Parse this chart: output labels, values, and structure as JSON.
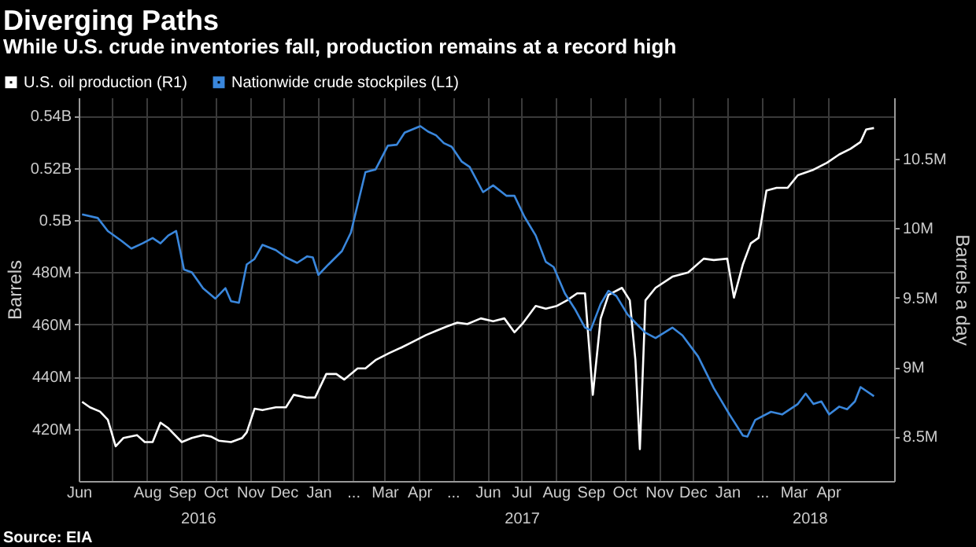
{
  "chart_data": {
    "type": "line",
    "title": "Diverging Paths",
    "subtitle": "While U.S. crude inventories fall, production remains at a record high",
    "ylabel": "Barrels",
    "y2label": "Barrels a day",
    "xlim": [
      "2016-06-01",
      "2018-05-30"
    ],
    "xticks": [
      {
        "value": "2016-06-01",
        "label": "Jun"
      },
      {
        "value": "2016-07-01",
        "label": null
      },
      {
        "value": "2016-08-01",
        "label": "Aug"
      },
      {
        "value": "2016-09-01",
        "label": "Sep"
      },
      {
        "value": "2016-10-01",
        "label": "Oct"
      },
      {
        "value": "2016-11-01",
        "label": "Nov"
      },
      {
        "value": "2016-12-01",
        "label": "Dec"
      },
      {
        "value": "2017-01-01",
        "label": "Jan"
      },
      {
        "value": "2017-02-01",
        "label": "..."
      },
      {
        "value": "2017-03-01",
        "label": "Mar"
      },
      {
        "value": "2017-04-01",
        "label": "Apr"
      },
      {
        "value": "2017-05-01",
        "label": "..."
      },
      {
        "value": "2017-06-01",
        "label": "Jun"
      },
      {
        "value": "2017-07-01",
        "label": "Jul"
      },
      {
        "value": "2017-08-01",
        "label": "Aug"
      },
      {
        "value": "2017-09-01",
        "label": "Sep"
      },
      {
        "value": "2017-10-01",
        "label": "Oct"
      },
      {
        "value": "2017-11-01",
        "label": "Nov"
      },
      {
        "value": "2017-12-01",
        "label": "Dec"
      },
      {
        "value": "2018-01-01",
        "label": "Jan"
      },
      {
        "value": "2018-02-01",
        "label": "..."
      },
      {
        "value": "2018-03-01",
        "label": "Mar"
      },
      {
        "value": "2018-04-01",
        "label": "Apr"
      }
    ],
    "ylim": [
      400000000,
      547000000
    ],
    "yticks": [
      {
        "value": 420000000,
        "label": "420M"
      },
      {
        "value": 440000000,
        "label": "440M"
      },
      {
        "value": 460000000,
        "label": "460M"
      },
      {
        "value": 480000000,
        "label": "480M"
      },
      {
        "value": 500000000,
        "label": "0.5B"
      },
      {
        "value": 520000000,
        "label": "0.52B"
      },
      {
        "value": 540000000,
        "label": "0.54B"
      }
    ],
    "y2lim": [
      8180000,
      10940000
    ],
    "y2ticks": [
      {
        "value": 8500000,
        "label": "8.5M"
      },
      {
        "value": 9000000,
        "label": "9M"
      },
      {
        "value": 9500000,
        "label": "9.5M"
      },
      {
        "value": 10000000,
        "label": "10M"
      },
      {
        "value": 10500000,
        "label": "10.5M"
      }
    ],
    "grid": true,
    "legend": "top left",
    "series": [
      {
        "name": "U.S. oil production  (R1)",
        "color": "#ffffff",
        "axis": "y2",
        "x": [
          "2016-06-04",
          "2016-06-11",
          "2016-06-20",
          "2016-06-27",
          "2016-07-04",
          "2016-07-11",
          "2016-07-23",
          "2016-07-30",
          "2016-08-06",
          "2016-08-13",
          "2016-08-20",
          "2016-09-01",
          "2016-09-10",
          "2016-09-20",
          "2016-09-27",
          "2016-10-04",
          "2016-10-15",
          "2016-10-25",
          "2016-10-29",
          "2016-11-05",
          "2016-11-12",
          "2016-11-24",
          "2016-12-03",
          "2016-12-10",
          "2016-12-22",
          "2016-12-29",
          "2017-01-08",
          "2017-01-17",
          "2017-01-24",
          "2017-02-05",
          "2017-02-12",
          "2017-02-21",
          "2017-03-05",
          "2017-03-16",
          "2017-03-26",
          "2017-04-07",
          "2017-04-16",
          "2017-04-25",
          "2017-05-05",
          "2017-05-14",
          "2017-05-26",
          "2017-06-06",
          "2017-06-16",
          "2017-06-25",
          "2017-07-02",
          "2017-07-14",
          "2017-07-23",
          "2017-08-02",
          "2017-08-11",
          "2017-08-20",
          "2017-08-27",
          "2017-09-03",
          "2017-09-10",
          "2017-09-17",
          "2017-09-29",
          "2017-10-06",
          "2017-10-11",
          "2017-10-15",
          "2017-10-20",
          "2017-10-29",
          "2017-11-13",
          "2017-11-27",
          "2017-12-11",
          "2017-12-20",
          "2018-01-01",
          "2018-01-07",
          "2018-01-15",
          "2018-01-22",
          "2018-01-29",
          "2018-02-05",
          "2018-02-14",
          "2018-02-24",
          "2018-03-05",
          "2018-03-19",
          "2018-03-31",
          "2018-04-11",
          "2018-04-21",
          "2018-04-30",
          "2018-05-05",
          "2018-05-12"
        ],
        "values": [
          8750000,
          8710000,
          8680000,
          8620000,
          8430000,
          8490000,
          8510000,
          8460000,
          8460000,
          8600000,
          8560000,
          8460000,
          8490000,
          8510000,
          8500000,
          8470000,
          8460000,
          8490000,
          8530000,
          8700000,
          8690000,
          8710000,
          8710000,
          8800000,
          8780000,
          8780000,
          8950000,
          8950000,
          8910000,
          8990000,
          8990000,
          9050000,
          9100000,
          9140000,
          9180000,
          9230000,
          9260000,
          9290000,
          9320000,
          9310000,
          9350000,
          9330000,
          9350000,
          9250000,
          9310000,
          9440000,
          9420000,
          9440000,
          9480000,
          9530000,
          9530000,
          8800000,
          9350000,
          9520000,
          9570000,
          9480000,
          9050000,
          8410000,
          9480000,
          9570000,
          9650000,
          9680000,
          9780000,
          9770000,
          9780000,
          9500000,
          9740000,
          9890000,
          9930000,
          10270000,
          10290000,
          10290000,
          10380000,
          10420000,
          10470000,
          10530000,
          10570000,
          10620000,
          10710000,
          10720000
        ]
      },
      {
        "name": "Nationwide crude stockpiles  (L1)",
        "color": "#3a87dc",
        "axis": "y",
        "x": [
          "2016-06-04",
          "2016-06-18",
          "2016-06-27",
          "2016-07-09",
          "2016-07-18",
          "2016-07-28",
          "2016-08-06",
          "2016-08-13",
          "2016-08-20",
          "2016-08-27",
          "2016-09-03",
          "2016-09-10",
          "2016-09-20",
          "2016-10-01",
          "2016-10-10",
          "2016-10-15",
          "2016-10-22",
          "2016-10-29",
          "2016-11-05",
          "2016-11-12",
          "2016-11-24",
          "2016-12-03",
          "2016-12-13",
          "2016-12-22",
          "2016-12-27",
          "2017-01-01",
          "2017-01-10",
          "2017-01-22",
          "2017-01-30",
          "2017-02-12",
          "2017-02-21",
          "2017-03-04",
          "2017-03-12",
          "2017-03-19",
          "2017-04-02",
          "2017-04-09",
          "2017-04-16",
          "2017-04-23",
          "2017-04-30",
          "2017-05-09",
          "2017-05-16",
          "2017-05-28",
          "2017-06-06",
          "2017-06-18",
          "2017-06-25",
          "2017-07-04",
          "2017-07-14",
          "2017-07-23",
          "2017-07-30",
          "2017-08-09",
          "2017-08-18",
          "2017-08-27",
          "2017-09-01",
          "2017-09-10",
          "2017-09-17",
          "2017-09-24",
          "2017-10-04",
          "2017-10-13",
          "2017-10-20",
          "2017-10-29",
          "2017-11-13",
          "2017-11-22",
          "2017-12-06",
          "2017-12-20",
          "2018-01-03",
          "2018-01-15",
          "2018-01-19",
          "2018-01-26",
          "2018-02-09",
          "2018-02-19",
          "2018-03-05",
          "2018-03-12",
          "2018-03-19",
          "2018-03-26",
          "2018-04-02",
          "2018-04-11",
          "2018-04-18",
          "2018-04-25",
          "2018-04-30",
          "2018-05-12"
        ],
        "values": [
          502200000,
          500800000,
          495800000,
          492100000,
          489100000,
          491100000,
          493100000,
          491100000,
          494100000,
          495800000,
          481000000,
          480000000,
          473900000,
          469900000,
          473900000,
          468900000,
          468300000,
          483000000,
          485100000,
          490500000,
          488500000,
          485700000,
          483600000,
          486100000,
          485700000,
          479000000,
          483000000,
          488100000,
          495200000,
          518400000,
          519400000,
          528500000,
          528900000,
          533500000,
          536000000,
          533900000,
          532500000,
          529500000,
          528100000,
          522400000,
          520400000,
          510700000,
          513300000,
          509300000,
          509300000,
          501200000,
          494100000,
          484000000,
          482000000,
          471900000,
          465900000,
          458800000,
          457800000,
          467900000,
          472900000,
          470900000,
          463800000,
          459800000,
          456800000,
          454800000,
          458800000,
          455800000,
          447700000,
          435600000,
          425500000,
          417400000,
          417000000,
          423400000,
          426500000,
          425500000,
          429500000,
          433500000,
          429500000,
          430500000,
          425500000,
          428500000,
          427500000,
          430500000,
          436000000,
          432500000
        ]
      }
    ],
    "annotations": [
      "2016",
      "2017",
      "2018",
      "Source: EIA"
    ]
  }
}
